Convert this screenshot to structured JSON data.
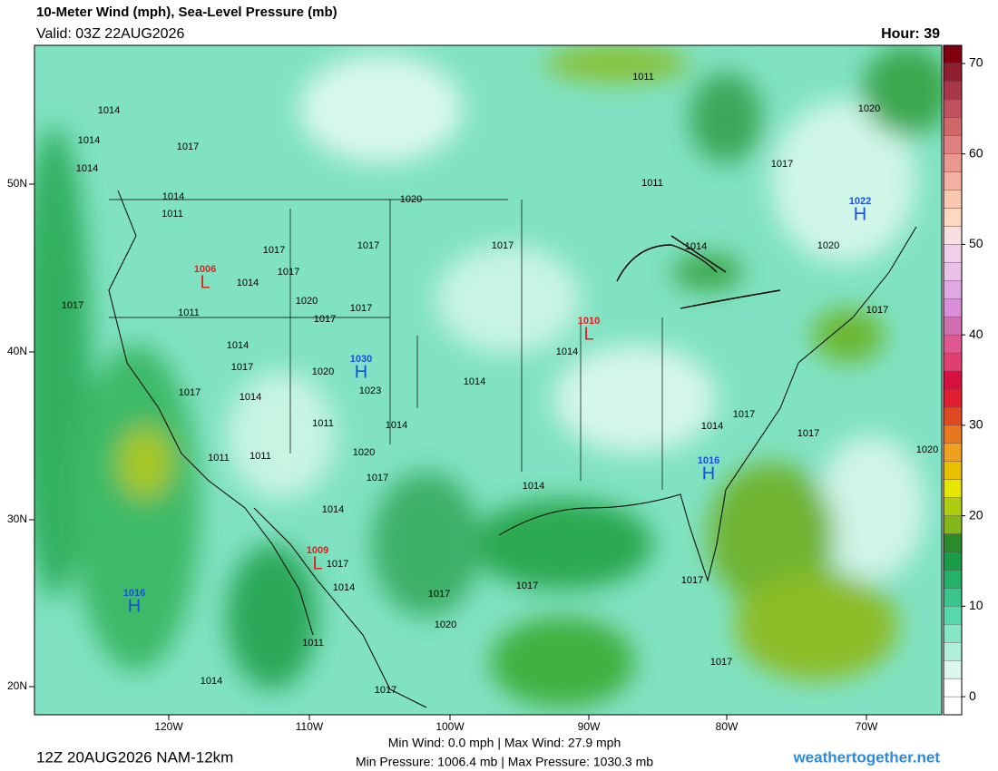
{
  "header": {
    "title": "10-Meter Wind (mph), Sea-Level Pressure (mb)",
    "valid": "Valid: 03Z 22AUG2026",
    "hour": "Hour: 39"
  },
  "map": {
    "lat_labels": [
      "50N",
      "40N",
      "30N",
      "20N"
    ],
    "lon_labels": [
      "120W",
      "110W",
      "100W",
      "90W",
      "80W",
      "70W"
    ],
    "pressure_labels": [
      "1014",
      "1014",
      "1017",
      "1014",
      "1014",
      "1011",
      "1017",
      "1017",
      "1014",
      "1020",
      "1017",
      "1017",
      "1011",
      "1017",
      "1014",
      "1017",
      "1017",
      "1014",
      "1020",
      "1023",
      "1011",
      "1014",
      "1020",
      "1017",
      "1011",
      "1011",
      "1014",
      "1017",
      "1014",
      "1017",
      "1020",
      "1011",
      "1014",
      "1017",
      "1020",
      "1017",
      "1017",
      "1014",
      "1014",
      "1014",
      "1011",
      "1011",
      "1017",
      "1014",
      "1020",
      "1020",
      "1017",
      "1014",
      "1017",
      "1017",
      "1020",
      "1017",
      "1017",
      "1017"
    ],
    "centers": [
      {
        "letter": "L",
        "pressure": 1006,
        "color": "#e02020"
      },
      {
        "letter": "L",
        "pressure": 1010,
        "color": "#e02020"
      },
      {
        "letter": "H",
        "pressure": 1030,
        "color": "#1a4ee0"
      },
      {
        "letter": "H",
        "pressure": 1022,
        "color": "#1a4ee0"
      },
      {
        "letter": "H",
        "pressure": 1016,
        "color": "#1a4ee0"
      },
      {
        "letter": "L",
        "pressure": 1009,
        "color": "#e02020"
      },
      {
        "letter": "H",
        "pressure": 1016,
        "color": "#1a4ee0"
      }
    ]
  },
  "colorbar": {
    "clim": [
      -2,
      72
    ],
    "ticks": [
      0,
      10,
      20,
      30,
      40,
      50,
      60,
      70
    ],
    "colors": [
      "#ffffff",
      "#ffffff",
      "#dcf7ee",
      "#b0f0da",
      "#84e6c6",
      "#56d8aa",
      "#38c68c",
      "#24b266",
      "#189c48",
      "#2a8c2c",
      "#82b818",
      "#b0cc10",
      "#e6e600",
      "#e8c000",
      "#f0a020",
      "#e87820",
      "#e04a20",
      "#e02030",
      "#d81040",
      "#e04070",
      "#e05890",
      "#d070b0",
      "#d890d8",
      "#e0a8e0",
      "#e8c0e8",
      "#f0d0e8",
      "#f8e0e0",
      "#fcd8c0",
      "#f8c8b0",
      "#f4b0a0",
      "#ec9890",
      "#e08080",
      "#d06868",
      "#c05060",
      "#a83848",
      "#902030",
      "#800010"
    ]
  },
  "footer": {
    "run": "12Z 20AUG2026 NAM-12km",
    "wind": "Min Wind:  0.0 mph | Max Wind: 27.9 mph",
    "pressure": "Min Pressure: 1006.4 mb | Max Pressure: 1030.3 mb",
    "site": "weathertogether.net"
  }
}
